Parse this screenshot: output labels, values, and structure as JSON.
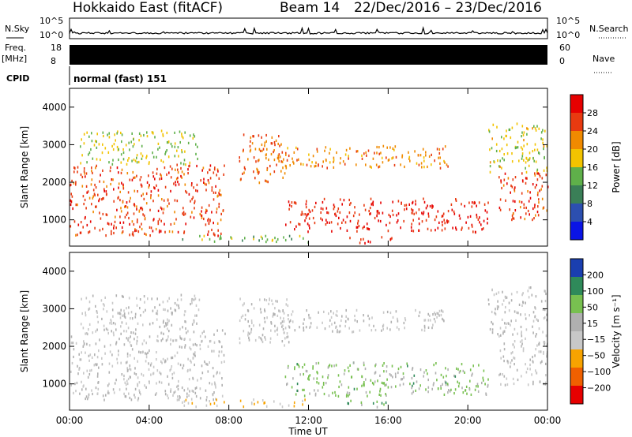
{
  "header": {
    "station": "Hokkaido East (fitACF)",
    "beam": "Beam 14",
    "date_range": "22/Dec/2016 – 23/Dec/2016"
  },
  "side_labels": {
    "nsky": "N.Sky",
    "nsearch": "N.Search",
    "freq": "Freq.",
    "freq_unit": "[MHz]",
    "nave": "Nave",
    "cpid": "CPID"
  },
  "noise_panel": {
    "tick_top": "10^5",
    "tick_bottom": "10^0"
  },
  "freq_panel": {
    "left_ticks": [
      "18",
      "8"
    ],
    "right_ticks": [
      "60",
      "0"
    ]
  },
  "cpid_panel": {
    "program": "normal (fast) 151"
  },
  "colors": {
    "power_scale": [
      "#0a14e6",
      "#2c4fb0",
      "#3a7f57",
      "#5fb04a",
      "#f2c300",
      "#f08a00",
      "#e83a10",
      "#e60000"
    ],
    "velocity_scale": [
      "#e60000",
      "#f06000",
      "#f7a300",
      "#c8c8c8",
      "#b0b0b0",
      "#78c050",
      "#2f8a5a",
      "#1a3fb0"
    ]
  },
  "chart_data": [
    {
      "type": "heatmap",
      "name": "power",
      "ylabel": "Slant Range [km]",
      "yticks": [
        "1000",
        "2000",
        "3000",
        "4000"
      ],
      "colorbar_label": "Power [dB]",
      "colorbar_ticks": [
        "28",
        "24",
        "20",
        "16",
        "12",
        "8",
        "4"
      ],
      "clim": [
        0,
        32
      ],
      "ylim": [
        300,
        4500
      ],
      "features": [
        {
          "t0": 0,
          "t1": 7.8,
          "r0": 600,
          "r1": 2500,
          "level": 26
        },
        {
          "t0": 0.5,
          "t1": 6.5,
          "r0": 2500,
          "r1": 3400,
          "level": 16
        },
        {
          "t0": 8.5,
          "t1": 11,
          "r0": 2000,
          "r1": 3300,
          "level": 24
        },
        {
          "t0": 10.5,
          "t1": 19,
          "r0": 2400,
          "r1": 3000,
          "level": 22
        },
        {
          "t0": 10.8,
          "t1": 21,
          "r0": 700,
          "r1": 1600,
          "level": 28
        },
        {
          "t0": 13.8,
          "t1": 16.2,
          "r0": 400,
          "r1": 580,
          "level": 28
        },
        {
          "t0": 21.5,
          "t1": 24,
          "r0": 1000,
          "r1": 2300,
          "level": 26
        },
        {
          "t0": 21,
          "t1": 24,
          "r0": 2300,
          "r1": 3600,
          "level": 17
        },
        {
          "t0": 5.5,
          "t1": 12,
          "r0": 420,
          "r1": 620,
          "level": 14
        }
      ]
    },
    {
      "type": "heatmap",
      "name": "velocity",
      "ylabel": "Slant Range [km]",
      "yticks": [
        "1000",
        "2000",
        "3000",
        "4000"
      ],
      "colorbar_label": "Velocity [m s⁻¹]",
      "colorbar_ticks": [
        "200",
        "100",
        "50",
        "15",
        "−15",
        "−50",
        "−100",
        "−200"
      ],
      "clim": [
        -200,
        200
      ],
      "ylim": [
        300,
        4500
      ],
      "features": [
        {
          "t0": 0,
          "t1": 7.8,
          "r0": 600,
          "r1": 2500,
          "level": 0
        },
        {
          "t0": 0.5,
          "t1": 6.5,
          "r0": 2500,
          "r1": 3400,
          "level": 0
        },
        {
          "t0": 8.5,
          "t1": 11,
          "r0": 2000,
          "r1": 3300,
          "level": 0
        },
        {
          "t0": 10.5,
          "t1": 19,
          "r0": 2400,
          "r1": 3000,
          "level": 0
        },
        {
          "t0": 10.8,
          "t1": 21,
          "r0": 700,
          "r1": 1600,
          "level": 60
        },
        {
          "t0": 13.8,
          "t1": 16.2,
          "r0": 400,
          "r1": 580,
          "level": 80
        },
        {
          "t0": 21.5,
          "t1": 24,
          "r0": 1000,
          "r1": 2300,
          "level": 0
        },
        {
          "t0": 21,
          "t1": 24,
          "r0": 2300,
          "r1": 3600,
          "level": 0
        },
        {
          "t0": 5.5,
          "t1": 12,
          "r0": 420,
          "r1": 620,
          "level": -40
        }
      ]
    }
  ],
  "x_axis": {
    "label": "Time UT",
    "ticks": [
      "00:00",
      "04:00",
      "08:00",
      "12:00",
      "16:00",
      "20:00",
      "00:00"
    ]
  }
}
